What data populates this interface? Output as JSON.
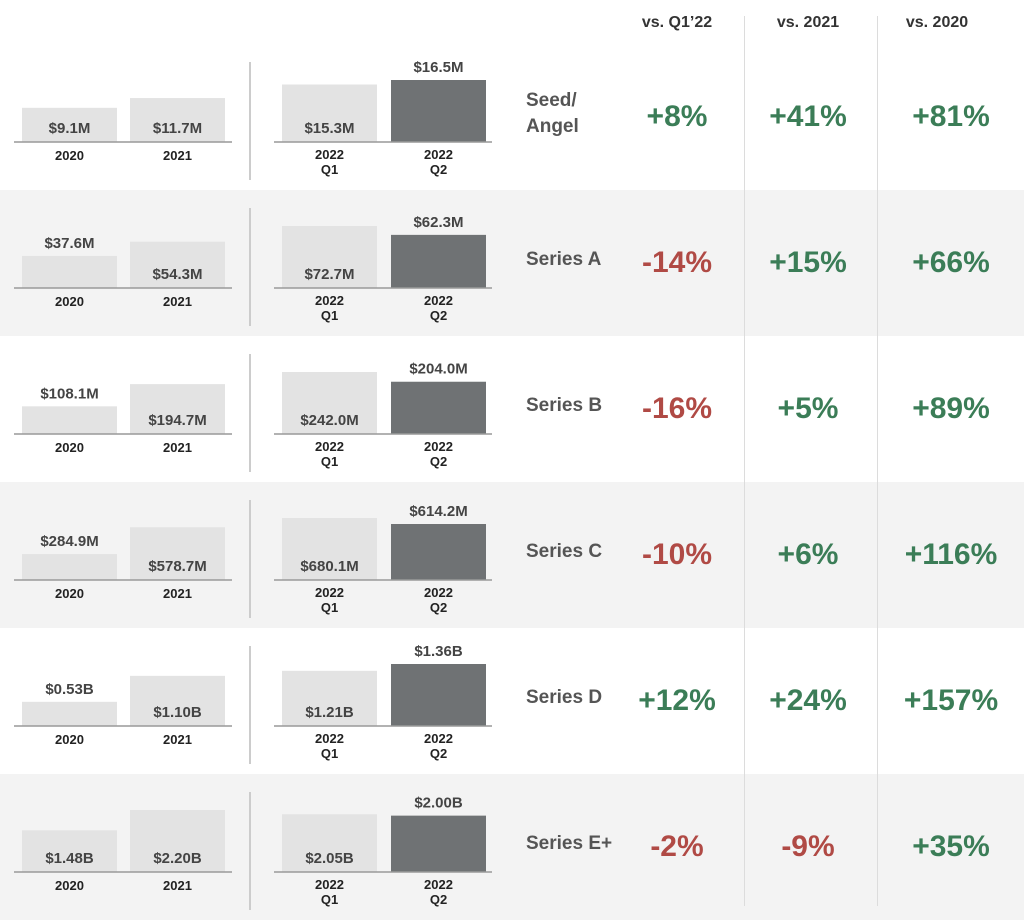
{
  "header": {
    "col_q1": "vs. Q1’22",
    "col_2021": "vs. 2021",
    "col_2020": "vs. 2020"
  },
  "colors": {
    "light_bar": "#e3e3e3",
    "dark_bar": "#6f7274",
    "axis": "#999999",
    "positive": "#3b7d57",
    "negative": "#b04a45",
    "row_shade": "#f3f3f3"
  },
  "chart_data": {
    "type": "bar",
    "annual_categories": [
      "2020",
      "2021"
    ],
    "quarter_categories": [
      [
        "2022",
        "Q1"
      ],
      [
        "2022",
        "Q2"
      ]
    ],
    "rows": [
      {
        "stage": "Seed/\nAngel",
        "annual": [
          9.1,
          11.7
        ],
        "annual_labels": [
          "$9.1M",
          "$11.7M"
        ],
        "quarterly": [
          15.3,
          16.5
        ],
        "quarterly_labels": [
          "$15.3M",
          "$16.5M"
        ],
        "vs_q1": "+8%",
        "vs_2021": "+41%",
        "vs_2020": "+81%"
      },
      {
        "stage": "Series A",
        "annual": [
          37.6,
          54.3
        ],
        "annual_labels": [
          "$37.6M",
          "$54.3M"
        ],
        "quarterly": [
          72.7,
          62.3
        ],
        "quarterly_labels": [
          "$72.7M",
          "$62.3M"
        ],
        "vs_q1": "-14%",
        "vs_2021": "+15%",
        "vs_2020": "+66%"
      },
      {
        "stage": "Series B",
        "annual": [
          108.1,
          194.7
        ],
        "annual_labels": [
          "$108.1M",
          "$194.7M"
        ],
        "quarterly": [
          242.0,
          204.0
        ],
        "quarterly_labels": [
          "$242.0M",
          "$204.0M"
        ],
        "vs_q1": "-16%",
        "vs_2021": "+5%",
        "vs_2020": "+89%"
      },
      {
        "stage": "Series C",
        "annual": [
          284.9,
          578.7
        ],
        "annual_labels": [
          "$284.9M",
          "$578.7M"
        ],
        "quarterly": [
          680.1,
          614.2
        ],
        "quarterly_labels": [
          "$680.1M",
          "$614.2M"
        ],
        "vs_q1": "-10%",
        "vs_2021": "+6%",
        "vs_2020": "+116%"
      },
      {
        "stage": "Series D",
        "annual": [
          0.53,
          1.1
        ],
        "annual_labels": [
          "$0.53B",
          "$1.10B"
        ],
        "quarterly": [
          1.21,
          1.36
        ],
        "quarterly_labels": [
          "$1.21B",
          "$1.36B"
        ],
        "vs_q1": "+12%",
        "vs_2021": "+24%",
        "vs_2020": "+157%"
      },
      {
        "stage": "Series E+",
        "annual": [
          1.48,
          2.2
        ],
        "annual_labels": [
          "$1.48B",
          "$2.20B"
        ],
        "quarterly": [
          2.05,
          2.0
        ],
        "quarterly_labels": [
          "$2.05B",
          "$2.00B"
        ],
        "vs_q1": "-2%",
        "vs_2021": "-9%",
        "vs_2020": "+35%"
      }
    ]
  }
}
